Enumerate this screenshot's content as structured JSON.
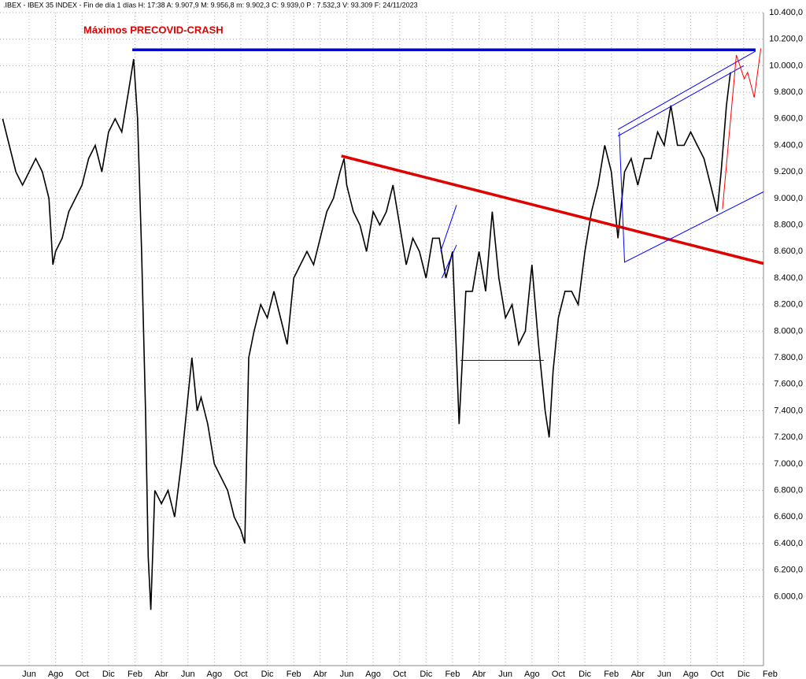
{
  "chart_data": {
    "type": "line",
    "title": ".IBEX - IBEX 35 INDEX - Fin de día 1 días H: 17:38 A: 9.907,9 M: 9.956,8 m: 9.902,3 C: 9.939,0 P : 7.532,3 V: 93.309 F: 24/11/2023",
    "annotation": "Máximos PRECOVID-CRASH",
    "color": "#000000",
    "grid": true,
    "xlim": [
      3.8,
      61.5
    ],
    "ylim": [
      5480,
      10400
    ],
    "xticks": [
      {
        "value": 6,
        "label": "Jun"
      },
      {
        "value": 8,
        "label": "Ago"
      },
      {
        "value": 10,
        "label": "Oct"
      },
      {
        "value": 12,
        "label": "Dic"
      },
      {
        "value": 14,
        "label": "Feb"
      },
      {
        "value": 16,
        "label": "Abr"
      },
      {
        "value": 18,
        "label": "Jun"
      },
      {
        "value": 20,
        "label": "Ago"
      },
      {
        "value": 22,
        "label": "Oct"
      },
      {
        "value": 24,
        "label": "Dic"
      },
      {
        "value": 26,
        "label": "Feb"
      },
      {
        "value": 28,
        "label": "Abr"
      },
      {
        "value": 30,
        "label": "Jun"
      },
      {
        "value": 32,
        "label": "Ago"
      },
      {
        "value": 34,
        "label": "Oct"
      },
      {
        "value": 36,
        "label": "Dic"
      },
      {
        "value": 38,
        "label": "Feb"
      },
      {
        "value": 40,
        "label": "Abr"
      },
      {
        "value": 42,
        "label": "Jun"
      },
      {
        "value": 44,
        "label": "Ago"
      },
      {
        "value": 46,
        "label": "Oct"
      },
      {
        "value": 48,
        "label": "Dic"
      },
      {
        "value": 50,
        "label": "Feb"
      },
      {
        "value": 52,
        "label": "Abr"
      },
      {
        "value": 54,
        "label": "Jun"
      },
      {
        "value": 56,
        "label": "Ago"
      },
      {
        "value": 58,
        "label": "Oct"
      },
      {
        "value": 60,
        "label": "Dic"
      },
      {
        "value": 62,
        "label": "Feb"
      }
    ],
    "yticks": [
      {
        "value": 6000,
        "label": "6.000,0"
      },
      {
        "value": 6200,
        "label": "6.200,0"
      },
      {
        "value": 6400,
        "label": "6.400,0"
      },
      {
        "value": 6600,
        "label": "6.600,0"
      },
      {
        "value": 6800,
        "label": "6.800,0"
      },
      {
        "value": 7000,
        "label": "7.000,0"
      },
      {
        "value": 7200,
        "label": "7.200,0"
      },
      {
        "value": 7400,
        "label": "7.400,0"
      },
      {
        "value": 7600,
        "label": "7.600,0"
      },
      {
        "value": 7800,
        "label": "7.800,0"
      },
      {
        "value": 8000,
        "label": "8.000,0"
      },
      {
        "value": 8200,
        "label": "8.200,0"
      },
      {
        "value": 8400,
        "label": "8.400,0"
      },
      {
        "value": 8600,
        "label": "8.600,0"
      },
      {
        "value": 8800,
        "label": "8.800,0"
      },
      {
        "value": 9000,
        "label": "9.000,0"
      },
      {
        "value": 9200,
        "label": "9.200,0"
      },
      {
        "value": 9400,
        "label": "9.400,0"
      },
      {
        "value": 9600,
        "label": "9.600,0"
      },
      {
        "value": 9800,
        "label": "9.800,0"
      },
      {
        "value": 10000,
        "label": "10.000,0"
      },
      {
        "value": 10200,
        "label": "10.200,0"
      },
      {
        "value": 10400,
        "label": "10.400,0"
      }
    ],
    "x": [
      4.0,
      4.5,
      5.0,
      5.5,
      6.0,
      6.5,
      7.0,
      7.5,
      7.8,
      8.0,
      8.5,
      9.0,
      9.5,
      10.0,
      10.5,
      11.0,
      11.5,
      12.0,
      12.5,
      13.0,
      13.5,
      13.9,
      14.2,
      14.5,
      14.8,
      15.0,
      15.2,
      15.5,
      16.0,
      16.5,
      17.0,
      17.5,
      18.0,
      18.3,
      18.7,
      19.0,
      19.5,
      20.0,
      20.5,
      21.0,
      21.5,
      22.0,
      22.3,
      22.6,
      23.0,
      23.5,
      24.0,
      24.5,
      25.0,
      25.5,
      26.0,
      26.5,
      27.0,
      27.5,
      28.0,
      28.5,
      29.0,
      29.5,
      29.8,
      30.0,
      30.5,
      31.0,
      31.5,
      32.0,
      32.5,
      33.0,
      33.5,
      34.0,
      34.5,
      35.0,
      35.5,
      36.0,
      36.5,
      37.0,
      37.5,
      38.0,
      38.5,
      39.0,
      39.5,
      40.0,
      40.5,
      41.0,
      41.5,
      42.0,
      42.5,
      43.0,
      43.5,
      44.0,
      44.5,
      45.0,
      45.3,
      45.6,
      46.0,
      46.5,
      47.0,
      47.5,
      48.0,
      48.5,
      49.0,
      49.5,
      50.0,
      50.5,
      51.0,
      51.5,
      52.0,
      52.5,
      53.0,
      53.5,
      54.0,
      54.5,
      55.0,
      55.5,
      56.0,
      56.5,
      57.0,
      57.5,
      58.0,
      58.3,
      58.7,
      59.0
    ],
    "series": [
      {
        "name": "IBEX 35",
        "color": "#000000",
        "values": [
          9600,
          9400,
          9200,
          9100,
          9200,
          9300,
          9200,
          9000,
          8500,
          8600,
          8700,
          8900,
          9000,
          9100,
          9300,
          9400,
          9200,
          9500,
          9600,
          9500,
          9800,
          10050,
          9600,
          8600,
          7400,
          6300,
          5900,
          6800,
          6700,
          6800,
          6600,
          7000,
          7500,
          7800,
          7400,
          7500,
          7300,
          7000,
          6900,
          6800,
          6600,
          6500,
          6400,
          7800,
          8000,
          8200,
          8100,
          8300,
          8100,
          7900,
          8400,
          8500,
          8600,
          8500,
          8700,
          8900,
          9000,
          9200,
          9300,
          9100,
          8900,
          8800,
          8600,
          8900,
          8800,
          8900,
          9100,
          8800,
          8500,
          8700,
          8600,
          8400,
          8700,
          8700,
          8400,
          8600,
          7300,
          8300,
          8300,
          8600,
          8300,
          8900,
          8400,
          8100,
          8200,
          7900,
          8000,
          8500,
          7900,
          7400,
          7200,
          7700,
          8100,
          8300,
          8300,
          8200,
          8600,
          8900,
          9100,
          9400,
          9200,
          8700,
          9200,
          9300,
          9100,
          9300,
          9300,
          9500,
          9400,
          9700,
          9400,
          9400,
          9500,
          9400,
          9300,
          9100,
          8900,
          9200,
          9700,
          9950
        ]
      }
    ],
    "lines": [
      {
        "color": "#0000c8",
        "thick": true,
        "x": [
          13.8,
          60.9
        ],
        "values": [
          10120,
          10120
        ]
      },
      {
        "color": "#e00000",
        "thick": true,
        "x": [
          29.6,
          61.5
        ],
        "values": [
          9320,
          8510
        ]
      },
      {
        "color": "#0000ff",
        "thick": false,
        "x": [
          50.5,
          60.9
        ],
        "values": [
          9520,
          10110
        ]
      },
      {
        "color": "#0000ff",
        "thick": false,
        "x": [
          50.5,
          60.0
        ],
        "values": [
          9470,
          10000
        ]
      },
      {
        "color": "#0000ff",
        "thick": false,
        "x": [
          50.6,
          51.0,
          61.5
        ],
        "values": [
          9500,
          8520,
          9050
        ]
      },
      {
        "color": "#0000ff",
        "thick": false,
        "x": [
          38.6,
          44.9
        ],
        "values": [
          7780,
          7780
        ]
      },
      {
        "color": "#0000ff",
        "thick": false,
        "x": [
          37.1,
          38.3
        ],
        "values": [
          8600,
          8950
        ]
      },
      {
        "color": "#0000ff",
        "thick": false,
        "x": [
          37.2,
          38.3
        ],
        "values": [
          8400,
          8650
        ]
      },
      {
        "color": "#ff0000",
        "thick": false,
        "x": [
          58.4,
          59.45,
          60.05,
          60.3,
          60.8,
          61.3
        ],
        "values": [
          8920,
          10080,
          9900,
          9950,
          9760,
          10130
        ]
      }
    ]
  }
}
